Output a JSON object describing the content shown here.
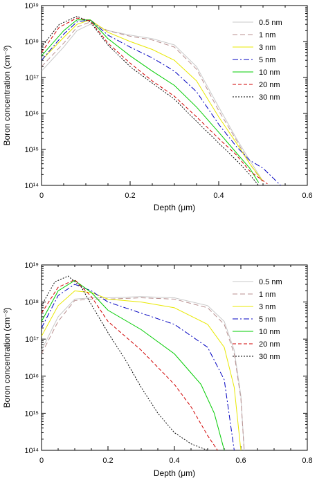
{
  "chart_data": [
    {
      "type": "line",
      "xlabel": "Depth (μm)",
      "ylabel": "Boron concentration (cm⁻³)",
      "xlim": [
        0,
        0.6
      ],
      "ylim": [
        100000000000000.0,
        1e+19
      ],
      "yscale": "log",
      "xticks": [
        "0",
        "0.2",
        "0.4",
        "0.6"
      ],
      "yticks": [
        "10¹⁴",
        "10¹⁵",
        "10¹⁶",
        "10¹⁷",
        "10¹⁸",
        "10¹⁹"
      ],
      "legend_position": "top-right",
      "series": [
        {
          "name": "0.5 nm",
          "color": "#c8c8c8",
          "dash": "",
          "x": [
            0,
            0.05,
            0.08,
            0.11,
            0.15,
            0.2,
            0.25,
            0.3,
            0.35,
            0.4,
            0.44,
            0.47,
            0.5
          ],
          "y": [
            1.5e+17,
            7e+17,
            2e+18,
            3e+18,
            2e+18,
            1.5e+18,
            1.2e+18,
            8e+17,
            2e+17,
            1.5e+16,
            2000000000000000.0,
            500000000000000.0,
            130000000000000.0
          ]
        },
        {
          "name": "1 nm",
          "color": "#b88f8f",
          "dash": "7,4",
          "x": [
            0,
            0.05,
            0.08,
            0.11,
            0.15,
            0.2,
            0.25,
            0.3,
            0.35,
            0.4,
            0.44,
            0.47,
            0.5
          ],
          "y": [
            2e+17,
            9e+17,
            2.5e+18,
            3.5e+18,
            2e+18,
            1.4e+18,
            1.1e+18,
            7e+17,
            1.7e+17,
            1.2e+16,
            1800000000000000.0,
            400000000000000.0,
            120000000000000.0
          ]
        },
        {
          "name": "3 nm",
          "color": "#e8e800",
          "dash": "",
          "x": [
            0,
            0.05,
            0.08,
            0.11,
            0.15,
            0.2,
            0.25,
            0.3,
            0.35,
            0.4,
            0.44,
            0.47,
            0.5
          ],
          "y": [
            3e+17,
            1.3e+18,
            3e+18,
            4e+18,
            1.8e+18,
            1e+18,
            6e+17,
            3e+17,
            8e+16,
            8000000000000000.0,
            1500000000000000.0,
            400000000000000.0,
            130000000000000.0
          ]
        },
        {
          "name": "5 nm",
          "color": "#0000c0",
          "dash": "8,3,2,3",
          "x": [
            0,
            0.05,
            0.08,
            0.11,
            0.15,
            0.2,
            0.25,
            0.3,
            0.35,
            0.4,
            0.44,
            0.47,
            0.5,
            0.54
          ],
          "y": [
            3e+17,
            1.6e+18,
            3.5e+18,
            4e+18,
            1.5e+18,
            7e+17,
            3.5e+17,
            1.5e+17,
            4e+16,
            5000000000000000.0,
            1200000000000000.0,
            500000000000000.0,
            300000000000000.0,
            100000000000000.0
          ]
        },
        {
          "name": "10 nm",
          "color": "#00cc00",
          "dash": "",
          "x": [
            0,
            0.05,
            0.08,
            0.11,
            0.15,
            0.2,
            0.25,
            0.3,
            0.35,
            0.4,
            0.44,
            0.47,
            0.49
          ],
          "y": [
            4e+17,
            2e+18,
            4e+18,
            4e+18,
            1.2e+18,
            4e+17,
            1.5e+17,
            6e+16,
            1.5e+16,
            3000000000000000.0,
            800000000000000.0,
            300000000000000.0,
            120000000000000.0
          ]
        },
        {
          "name": "20 nm",
          "color": "#d00000",
          "dash": "5,3",
          "x": [
            0,
            0.04,
            0.08,
            0.11,
            0.15,
            0.2,
            0.25,
            0.3,
            0.35,
            0.4,
            0.44,
            0.47,
            0.51
          ],
          "y": [
            5e+17,
            2.5e+18,
            4.5e+18,
            3.8e+18,
            9e+17,
            2.5e+17,
            8e+16,
            3e+16,
            8000000000000000.0,
            2000000000000000.0,
            700000000000000.0,
            250000000000000.0,
            110000000000000.0
          ]
        },
        {
          "name": "30 nm",
          "color": "#000000",
          "dash": "2,2",
          "x": [
            0,
            0.04,
            0.08,
            0.11,
            0.15,
            0.2,
            0.25,
            0.3,
            0.35,
            0.4,
            0.44,
            0.47,
            0.49
          ],
          "y": [
            7e+17,
            3e+18,
            5e+18,
            3.5e+18,
            8e+17,
            2e+17,
            7e+16,
            2.5e+16,
            6000000000000000.0,
            1500000000000000.0,
            500000000000000.0,
            200000000000000.0,
            100000000000000.0
          ]
        }
      ]
    },
    {
      "type": "line",
      "xlabel": "Depth (μm)",
      "ylabel": "Boron concentration (cm⁻³)",
      "xlim": [
        0,
        0.8
      ],
      "ylim": [
        100000000000000.0,
        1e+19
      ],
      "yscale": "log",
      "xticks": [
        "0",
        "0.2",
        "0.4",
        "0.6",
        "0.8"
      ],
      "yticks": [
        "10¹⁴",
        "10¹⁵",
        "10¹⁶",
        "10¹⁷",
        "10¹⁸",
        "10¹⁹"
      ],
      "legend_position": "top-right",
      "series": [
        {
          "name": "0.5 nm",
          "color": "#c8c8c8",
          "dash": "",
          "x": [
            0,
            0.05,
            0.1,
            0.15,
            0.2,
            0.3,
            0.4,
            0.5,
            0.55,
            0.58,
            0.6,
            0.61
          ],
          "y": [
            5e+16,
            4e+17,
            1.2e+18,
            1.3e+18,
            1.3e+18,
            1.4e+18,
            1.3e+18,
            8e+17,
            3e+17,
            5e+16,
            3000000000000000.0,
            100000000000000.0
          ]
        },
        {
          "name": "1 nm",
          "color": "#b88f8f",
          "dash": "7,4",
          "x": [
            0,
            0.05,
            0.1,
            0.15,
            0.2,
            0.3,
            0.4,
            0.5,
            0.55,
            0.58,
            0.6,
            0.61
          ],
          "y": [
            4e+16,
            3e+17,
            1.1e+18,
            1.2e+18,
            1.2e+18,
            1.3e+18,
            1.2e+18,
            7e+17,
            2.5e+17,
            4e+16,
            2500000000000000.0,
            100000000000000.0
          ]
        },
        {
          "name": "3 nm",
          "color": "#e8e800",
          "dash": "",
          "x": [
            0,
            0.05,
            0.1,
            0.15,
            0.2,
            0.3,
            0.4,
            0.5,
            0.55,
            0.58,
            0.6
          ],
          "y": [
            1.2e+17,
            8e+17,
            2e+18,
            1.8e+18,
            1.2e+18,
            1e+18,
            7e+17,
            2.5e+17,
            6e+16,
            5000000000000000.0,
            100000000000000.0
          ]
        },
        {
          "name": "5 nm",
          "color": "#0000c0",
          "dash": "8,3,2,3",
          "x": [
            0,
            0.05,
            0.1,
            0.15,
            0.2,
            0.3,
            0.4,
            0.5,
            0.55,
            0.58
          ],
          "y": [
            2e+17,
            1.5e+18,
            3e+18,
            2e+18,
            1e+18,
            5e+17,
            2.5e+17,
            6e+16,
            8000000000000000.0,
            100000000000000.0
          ]
        },
        {
          "name": "10 nm",
          "color": "#00cc00",
          "dash": "",
          "x": [
            0,
            0.05,
            0.1,
            0.15,
            0.2,
            0.3,
            0.4,
            0.48,
            0.52,
            0.55
          ],
          "y": [
            3e+17,
            2e+18,
            3.8e+18,
            1.8e+18,
            6e+17,
            1.8e+17,
            4e+16,
            6000000000000000.0,
            1000000000000000.0,
            100000000000000.0
          ]
        },
        {
          "name": "20 nm",
          "color": "#d00000",
          "dash": "5,3",
          "x": [
            0,
            0.05,
            0.1,
            0.15,
            0.2,
            0.3,
            0.4,
            0.45,
            0.5,
            0.53
          ],
          "y": [
            5e+17,
            2.5e+18,
            4e+18,
            1.4e+18,
            3e+17,
            5e+16,
            6000000000000000.0,
            1500000000000000.0,
            250000000000000.0,
            100000000000000.0
          ]
        },
        {
          "name": "30 nm",
          "color": "#000000",
          "dash": "2,2",
          "x": [
            0,
            0.04,
            0.08,
            0.12,
            0.16,
            0.2,
            0.25,
            0.3,
            0.35,
            0.4,
            0.45,
            0.5
          ],
          "y": [
            8e+17,
            3.5e+18,
            5e+18,
            2.5e+18,
            6e+17,
            1.5e+17,
            3e+16,
            5000000000000000.0,
            1000000000000000.0,
            300000000000000.0,
            150000000000000.0,
            100000000000000.0
          ]
        }
      ]
    }
  ]
}
